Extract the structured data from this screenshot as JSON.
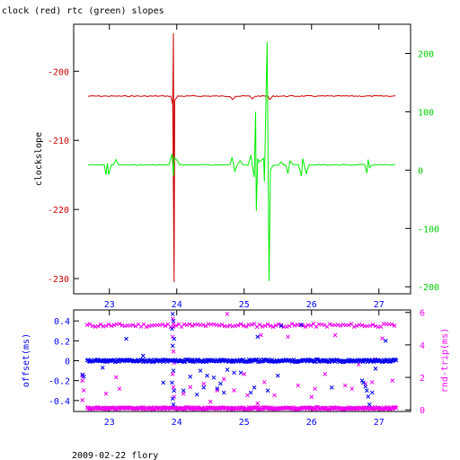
{
  "title": "clock (red) rtc (green) slopes",
  "footer": "2009-02-22 flory",
  "colors": {
    "clock": "#cc0000",
    "rtc": "#00ee00",
    "offset": "#0000ee",
    "roundtrip": "#ee00ee",
    "frame": "#000000"
  },
  "chart_data": [
    {
      "type": "line",
      "title": "clock (red) rtc (green) slopes",
      "ylabel": "clockslope",
      "xlim": [
        22.47,
        27.47
      ],
      "x_ticks": [
        23,
        24,
        25,
        26,
        27
      ],
      "y_left": {
        "ylim": [
          -232.2,
          -193.2
        ],
        "ticks": [
          -200,
          -210,
          -220,
          -230
        ],
        "color": "red"
      },
      "y_right": {
        "ylim": [
          -212,
          250
        ],
        "ticks": [
          200,
          100,
          0,
          -100,
          -200
        ],
        "color": "green"
      },
      "series": [
        {
          "name": "clock",
          "axis": "left",
          "baseline": -203.6,
          "spikes": [
            [
              23.94,
              -204.8
            ],
            [
              23.95,
              -194.5
            ],
            [
              23.96,
              -230.5
            ],
            [
              23.97,
              -204.2
            ],
            [
              24.83,
              -204.1
            ],
            [
              25.12,
              -204.0
            ],
            [
              25.38,
              -204.1
            ]
          ]
        },
        {
          "name": "rtc",
          "axis": "right",
          "baseline": 9,
          "spikes": [
            [
              22.95,
              -8
            ],
            [
              22.97,
              12
            ],
            [
              22.99,
              -8
            ],
            [
              23.1,
              18
            ],
            [
              23.93,
              28
            ],
            [
              23.95,
              -10
            ],
            [
              23.96,
              22
            ],
            [
              24.01,
              16
            ],
            [
              24.82,
              22
            ],
            [
              24.86,
              -2
            ],
            [
              24.94,
              16
            ],
            [
              25.1,
              26
            ],
            [
              25.13,
              2
            ],
            [
              25.15,
              -12
            ],
            [
              25.17,
              100
            ],
            [
              25.18,
              -70
            ],
            [
              25.2,
              20
            ],
            [
              25.22,
              14
            ],
            [
              25.29,
              20
            ],
            [
              25.3,
              -20
            ],
            [
              25.34,
              220
            ],
            [
              25.37,
              -190
            ],
            [
              25.39,
              0
            ],
            [
              25.55,
              14
            ],
            [
              25.65,
              -6
            ],
            [
              25.68,
              16
            ],
            [
              25.85,
              -10
            ],
            [
              25.87,
              20
            ],
            [
              25.92,
              -6
            ],
            [
              26.82,
              -5
            ],
            [
              26.84,
              18
            ],
            [
              26.86,
              4
            ]
          ]
        }
      ]
    },
    {
      "type": "scatter",
      "xlabel": "",
      "xlim": [
        22.47,
        27.47
      ],
      "x_ticks": [
        23,
        24,
        25,
        26,
        27
      ],
      "y_left": {
        "label": "offset(ms)",
        "ylim": [
          -0.51,
          0.51
        ],
        "ticks": [
          0.4,
          0.2,
          0,
          -0.2,
          -0.4
        ],
        "color": "blue"
      },
      "y_right": {
        "label": "rnd-trip(ms)",
        "ylim": [
          -0.1,
          6.15
        ],
        "ticks": [
          6,
          4,
          2,
          0
        ],
        "color": "magenta"
      },
      "series": [
        {
          "name": "offset",
          "axis": "left",
          "band": {
            "level": 0.0,
            "spread": 0.012
          },
          "points": [
            [
              23.94,
              0.47
            ],
            [
              23.95,
              0.4
            ],
            [
              23.93,
              0.32
            ],
            [
              23.96,
              0.22
            ],
            [
              23.94,
              0.15
            ],
            [
              23.95,
              -0.1
            ],
            [
              23.93,
              -0.22
            ],
            [
              23.96,
              -0.3
            ],
            [
              23.94,
              -0.38
            ],
            [
              23.95,
              -0.44
            ],
            [
              22.6,
              -0.14
            ],
            [
              22.62,
              -0.16
            ],
            [
              22.9,
              -0.07
            ],
            [
              23.25,
              0.22
            ],
            [
              23.5,
              0.05
            ],
            [
              23.8,
              -0.22
            ],
            [
              24.1,
              -0.3
            ],
            [
              24.2,
              -0.16
            ],
            [
              24.3,
              -0.34
            ],
            [
              24.35,
              -0.1
            ],
            [
              24.4,
              -0.27
            ],
            [
              24.45,
              -0.15
            ],
            [
              24.55,
              -0.17
            ],
            [
              24.6,
              -0.28
            ],
            [
              24.65,
              -0.23
            ],
            [
              24.7,
              -0.32
            ],
            [
              24.75,
              -0.09
            ],
            [
              24.85,
              -0.12
            ],
            [
              24.95,
              -0.12
            ],
            [
              25.1,
              -0.32
            ],
            [
              25.15,
              -0.27
            ],
            [
              25.2,
              0.24
            ],
            [
              25.35,
              -0.3
            ],
            [
              25.55,
              0.35
            ],
            [
              25.85,
              0.36
            ],
            [
              25.5,
              -0.15
            ],
            [
              26.3,
              -0.27
            ],
            [
              26.75,
              -0.2
            ],
            [
              26.77,
              -0.22
            ],
            [
              26.8,
              -0.26
            ],
            [
              26.82,
              -0.3
            ],
            [
              26.84,
              -0.36
            ],
            [
              26.86,
              -0.44
            ],
            [
              26.9,
              -0.32
            ],
            [
              26.95,
              -0.08
            ],
            [
              27.1,
              0.2
            ]
          ]
        },
        {
          "name": "roundtrip",
          "axis": "right",
          "bands": [
            {
              "level": 5.2,
              "spread": 0.1
            },
            {
              "level": 0.1,
              "spread": 0.06
            }
          ],
          "points": [
            [
              23.94,
              5.6
            ],
            [
              23.95,
              5.3
            ],
            [
              23.94,
              4.5
            ],
            [
              23.95,
              3.6
            ],
            [
              23.96,
              2.9
            ],
            [
              23.94,
              2.2
            ],
            [
              23.95,
              1.4
            ],
            [
              23.96,
              0.8
            ],
            [
              22.6,
              2.1
            ],
            [
              22.6,
              1.8
            ],
            [
              22.62,
              1.2
            ],
            [
              22.6,
              0.6
            ],
            [
              22.95,
              1.0
            ],
            [
              23.1,
              2.0
            ],
            [
              23.15,
              1.3
            ],
            [
              24.1,
              1.0
            ],
            [
              24.2,
              1.4
            ],
            [
              24.4,
              1.6
            ],
            [
              24.5,
              0.5
            ],
            [
              24.6,
              1.2
            ],
            [
              24.7,
              1.9
            ],
            [
              24.75,
              5.9
            ],
            [
              24.85,
              1.2
            ],
            [
              25.0,
              2.2
            ],
            [
              25.05,
              0.9
            ],
            [
              25.2,
              0.4
            ],
            [
              25.25,
              4.6
            ],
            [
              25.3,
              1.7
            ],
            [
              25.45,
              0.9
            ],
            [
              25.65,
              4.5
            ],
            [
              25.8,
              1.5
            ],
            [
              26.0,
              0.8
            ],
            [
              26.05,
              1.3
            ],
            [
              26.2,
              2.2
            ],
            [
              26.35,
              4.6
            ],
            [
              26.5,
              1.5
            ],
            [
              26.6,
              1.3
            ],
            [
              26.7,
              2.8
            ],
            [
              26.8,
              1.6
            ],
            [
              26.9,
              1.7
            ],
            [
              26.95,
              3.1
            ],
            [
              27.05,
              4.4
            ],
            [
              27.2,
              1.8
            ]
          ]
        }
      ]
    }
  ]
}
